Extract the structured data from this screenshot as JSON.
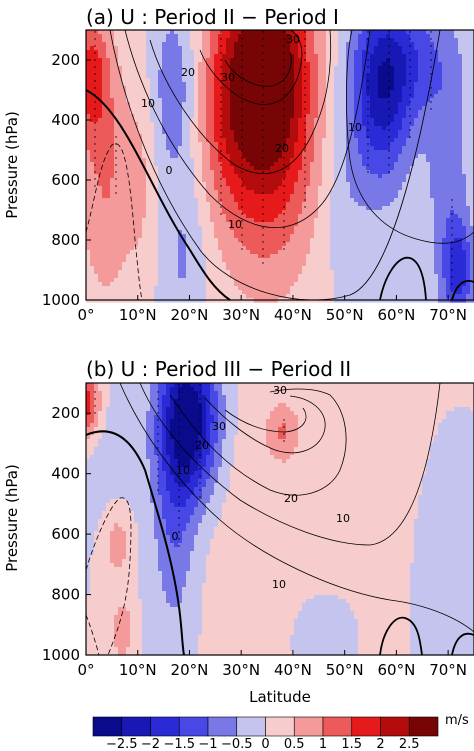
{
  "chart_data": [
    {
      "type": "heatmap",
      "title": "(a) U : Period II − Period I",
      "xlabel": "",
      "ylabel": "Pressure (hPa)",
      "xlim": [
        0,
        75
      ],
      "ylim": [
        1000,
        100
      ],
      "x_ticks": [
        "0°",
        "10°N",
        "20°N",
        "30°N",
        "40°N",
        "50°N",
        "60°N",
        "70°N"
      ],
      "y_ticks": [
        "200",
        "400",
        "600",
        "800",
        "1000"
      ],
      "shading_blobs": [
        {
          "lat": 35,
          "p": 220,
          "value": 3.0,
          "sx": 6,
          "sy": 260
        },
        {
          "lat": 35,
          "p": 600,
          "value": 1.2,
          "sx": 7,
          "sy": 300
        },
        {
          "lat": 27,
          "p": 350,
          "value": 0.8,
          "sx": 4,
          "sy": 250
        },
        {
          "lat": 1,
          "p": 250,
          "value": 1.5,
          "sx": 2.5,
          "sy": 150
        },
        {
          "lat": 4,
          "p": 600,
          "value": 1.0,
          "sx": 4,
          "sy": 300
        },
        {
          "lat": 17,
          "p": 300,
          "value": -0.9,
          "sx": 3,
          "sy": 200
        },
        {
          "lat": 19,
          "p": 850,
          "value": -0.6,
          "sx": 3,
          "sy": 200
        },
        {
          "lat": 57,
          "p": 330,
          "value": -1.9,
          "sx": 4,
          "sy": 220
        },
        {
          "lat": 62,
          "p": 200,
          "value": -1.2,
          "sx": 6,
          "sy": 150
        },
        {
          "lat": 50,
          "p": 620,
          "value": -0.4,
          "sx": 3,
          "sy": 250
        },
        {
          "lat": 72,
          "p": 900,
          "value": -1.6,
          "sx": 2,
          "sy": 110
        },
        {
          "lat": 70,
          "p": 600,
          "value": -0.8,
          "sx": 3,
          "sy": 300
        },
        {
          "lat": 11,
          "p": 600,
          "value": 0.4,
          "sx": 2,
          "sy": 250
        }
      ],
      "contour_levels": [
        0,
        10,
        20,
        30
      ],
      "contour_labels": [
        "30",
        "30",
        "20",
        "10",
        "0",
        "20",
        "10",
        "10"
      ]
    },
    {
      "type": "heatmap",
      "title": "(b) U : Period III − Period II",
      "xlabel": "Latitude",
      "ylabel": "Pressure (hPa)",
      "xlim": [
        0,
        75
      ],
      "ylim": [
        1000,
        100
      ],
      "x_ticks": [
        "0°",
        "10°N",
        "20°N",
        "30°N",
        "40°N",
        "50°N",
        "60°N",
        "70°N"
      ],
      "y_ticks": [
        "200",
        "400",
        "600",
        "800",
        "1000"
      ],
      "shading_blobs": [
        {
          "lat": 20,
          "p": 220,
          "value": -3.0,
          "sx": 4,
          "sy": 180
        },
        {
          "lat": 17,
          "p": 550,
          "value": -1.0,
          "sx": 3,
          "sy": 280
        },
        {
          "lat": 0,
          "p": 170,
          "value": 1.8,
          "sx": 2,
          "sy": 80
        },
        {
          "lat": 38,
          "p": 260,
          "value": 0.8,
          "sx": 2,
          "sy": 60
        },
        {
          "lat": 38,
          "p": 450,
          "value": 0.3,
          "sx": 15,
          "sy": 450
        },
        {
          "lat": 6,
          "p": 630,
          "value": 0.8,
          "sx": 2,
          "sy": 90
        },
        {
          "lat": 7,
          "p": 920,
          "value": 0.9,
          "sx": 1.5,
          "sy": 70
        },
        {
          "lat": 5,
          "p": 350,
          "value": -0.3,
          "sx": 4,
          "sy": 200
        },
        {
          "lat": 70,
          "p": 750,
          "value": -0.3,
          "sx": 4,
          "sy": 250
        },
        {
          "lat": 45,
          "p": 900,
          "value": -0.25,
          "sx": 6,
          "sy": 150
        }
      ],
      "contour_levels": [
        0,
        10,
        20,
        30
      ],
      "contour_labels": [
        "30",
        "30",
        "20",
        "10",
        "20",
        "10",
        "0",
        "10"
      ]
    }
  ],
  "colorbar": {
    "unit": "m/s",
    "tick_labels": [
      "−2.5",
      "−2",
      "−1.5",
      "−1",
      "−0.5",
      "0",
      "0.5",
      "1",
      "1.5",
      "2",
      "2.5"
    ],
    "colors": [
      "#0a0a8c",
      "#1818b4",
      "#2a2ad6",
      "#4848e6",
      "#7878e6",
      "#c4c4ee",
      "#f7cccc",
      "#f49a9a",
      "#ec5a5a",
      "#e61a1a",
      "#b40c0c",
      "#780505"
    ]
  }
}
